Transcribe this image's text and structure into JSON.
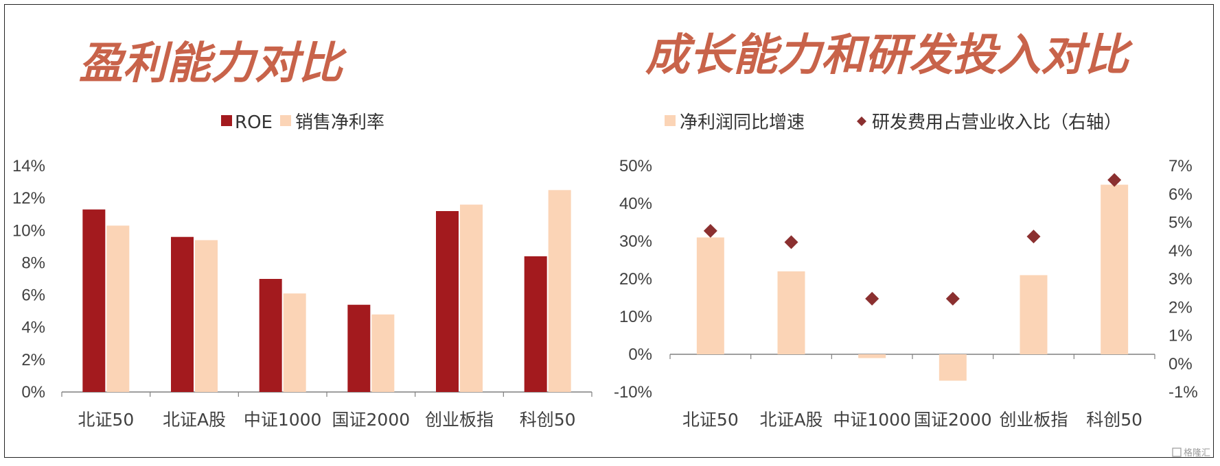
{
  "watermark": "格隆汇",
  "colors": {
    "roe": "#a31a1e",
    "light": "#fbd4b6",
    "diamond": "#8b3030",
    "title": "#c8634a"
  },
  "chart_data": [
    {
      "type": "bar",
      "title": "盈利能力对比",
      "categories": [
        "北证50",
        "北证A股",
        "中证1000",
        "国证2000",
        "创业板指",
        "科创50"
      ],
      "series": [
        {
          "name": "ROE",
          "values": [
            11.3,
            9.6,
            7.0,
            5.4,
            11.2,
            8.4
          ]
        },
        {
          "name": "销售净利率",
          "values": [
            10.3,
            9.4,
            6.1,
            4.8,
            11.6,
            12.5
          ]
        }
      ],
      "ylim": [
        0,
        14
      ],
      "yticks": [
        "0%",
        "2%",
        "4%",
        "6%",
        "8%",
        "10%",
        "12%",
        "14%"
      ],
      "legend": "top"
    },
    {
      "type": "bar",
      "title": "成长能力和研发投入对比",
      "categories": [
        "北证50",
        "北证A股",
        "中证1000",
        "国证2000",
        "创业板指",
        "科创50"
      ],
      "series": [
        {
          "name": "净利润同比增速",
          "values": [
            31,
            22,
            -1,
            -7,
            21,
            45
          ]
        },
        {
          "name": "研发费用占营业收入比（右轴）",
          "type": "scatter",
          "axis": "right",
          "values": [
            4.7,
            4.3,
            2.3,
            2.3,
            4.5,
            6.5
          ]
        }
      ],
      "ylim": [
        -10,
        50
      ],
      "yticks": [
        "-10%",
        "0%",
        "10%",
        "20%",
        "30%",
        "40%",
        "50%"
      ],
      "ylim_right": [
        -1,
        7
      ],
      "yticks_right": [
        "-1%",
        "0%",
        "1%",
        "2%",
        "3%",
        "4%",
        "5%",
        "6%",
        "7%"
      ],
      "legend": "top"
    }
  ]
}
